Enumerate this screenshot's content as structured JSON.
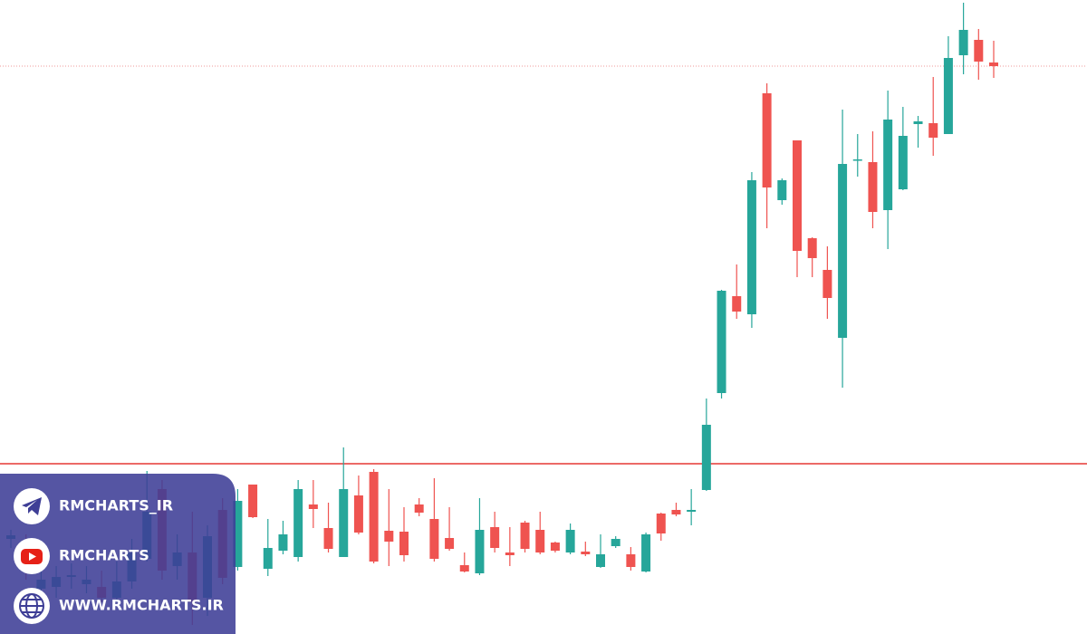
{
  "chart_data": {
    "type": "candlestick",
    "ylim": [
      0,
      700
    ],
    "up_color": "#26a69a",
    "down_color": "#ef5350",
    "series": [
      {
        "open": [
          105,
          102,
          50,
          52,
          63,
          55,
          52,
          40,
          58,
          83,
          160,
          75,
          90,
          40,
          137,
          74,
          165,
          72,
          92,
          85,
          143,
          117,
          85,
          153,
          179,
          114,
          113,
          143,
          127,
          106,
          76,
          67,
          118,
          90,
          123,
          115,
          101,
          90,
          91,
          74,
          97,
          88,
          69,
          133,
          137,
          135,
          159,
          266,
          373,
          353,
          597,
          479,
          545,
          437,
          402,
          327,
          523,
          521,
          468,
          491,
          563,
          564,
          552,
          639,
          656,
          631
        ],
        "high": [
          115,
          110,
          75,
          75,
          78,
          75,
          70,
          80,
          105,
          180,
          170,
          110,
          135,
          120,
          150,
          160,
          165,
          127,
          125,
          170,
          170,
          145,
          206,
          175,
          182,
          160,
          140,
          150,
          172,
          140,
          90,
          150,
          135,
          118,
          125,
          135,
          102,
          122,
          102,
          110,
          108,
          96,
          112,
          134,
          145,
          160,
          260,
          380,
          408,
          510,
          608,
          503,
          545,
          438,
          428,
          579,
          552,
          555,
          600,
          582,
          572,
          615,
          660,
          697,
          668,
          655
        ],
        "low": [
          95,
          60,
          40,
          40,
          50,
          45,
          35,
          35,
          50,
          80,
          60,
          60,
          10,
          20,
          55,
          70,
          128,
          64,
          88,
          80,
          117,
          90,
          85,
          110,
          78,
          75,
          80,
          130,
          80,
          92,
          68,
          65,
          90,
          75,
          90,
          88,
          90,
          88,
          86,
          73,
          95,
          70,
          68,
          103,
          130,
          120,
          158,
          260,
          348,
          338,
          448,
          474,
          394,
          394,
          348,
          272,
          505,
          448,
          425,
          490,
          537,
          528,
          552,
          618,
          612,
          614
        ],
        "close": [
          109,
          75,
          60,
          63,
          65,
          60,
          40,
          58,
          90,
          135,
          70,
          90,
          35,
          108,
          62,
          147,
          129,
          95,
          110,
          160,
          138,
          94,
          160,
          112,
          80,
          102,
          87,
          134,
          83,
          94,
          69,
          115,
          95,
          87,
          94,
          90,
          92,
          115,
          88,
          88,
          105,
          74,
          110,
          111,
          132,
          137,
          231,
          379,
          356,
          501,
          493,
          501,
          423,
          415,
          371,
          519,
          524,
          466,
          568,
          550,
          566,
          548,
          636,
          667,
          632,
          627
        ]
      }
    ],
    "hlines": [
      {
        "value": 188,
        "color": "#e53935",
        "style": "solid"
      },
      {
        "value": 627,
        "color": "#ef9a9a",
        "style": "dotted"
      }
    ]
  },
  "brand_panel": {
    "items": [
      "RMCHARTS_IR",
      "RMCHARTS",
      "WWW.RMCHARTS.IR"
    ]
  }
}
